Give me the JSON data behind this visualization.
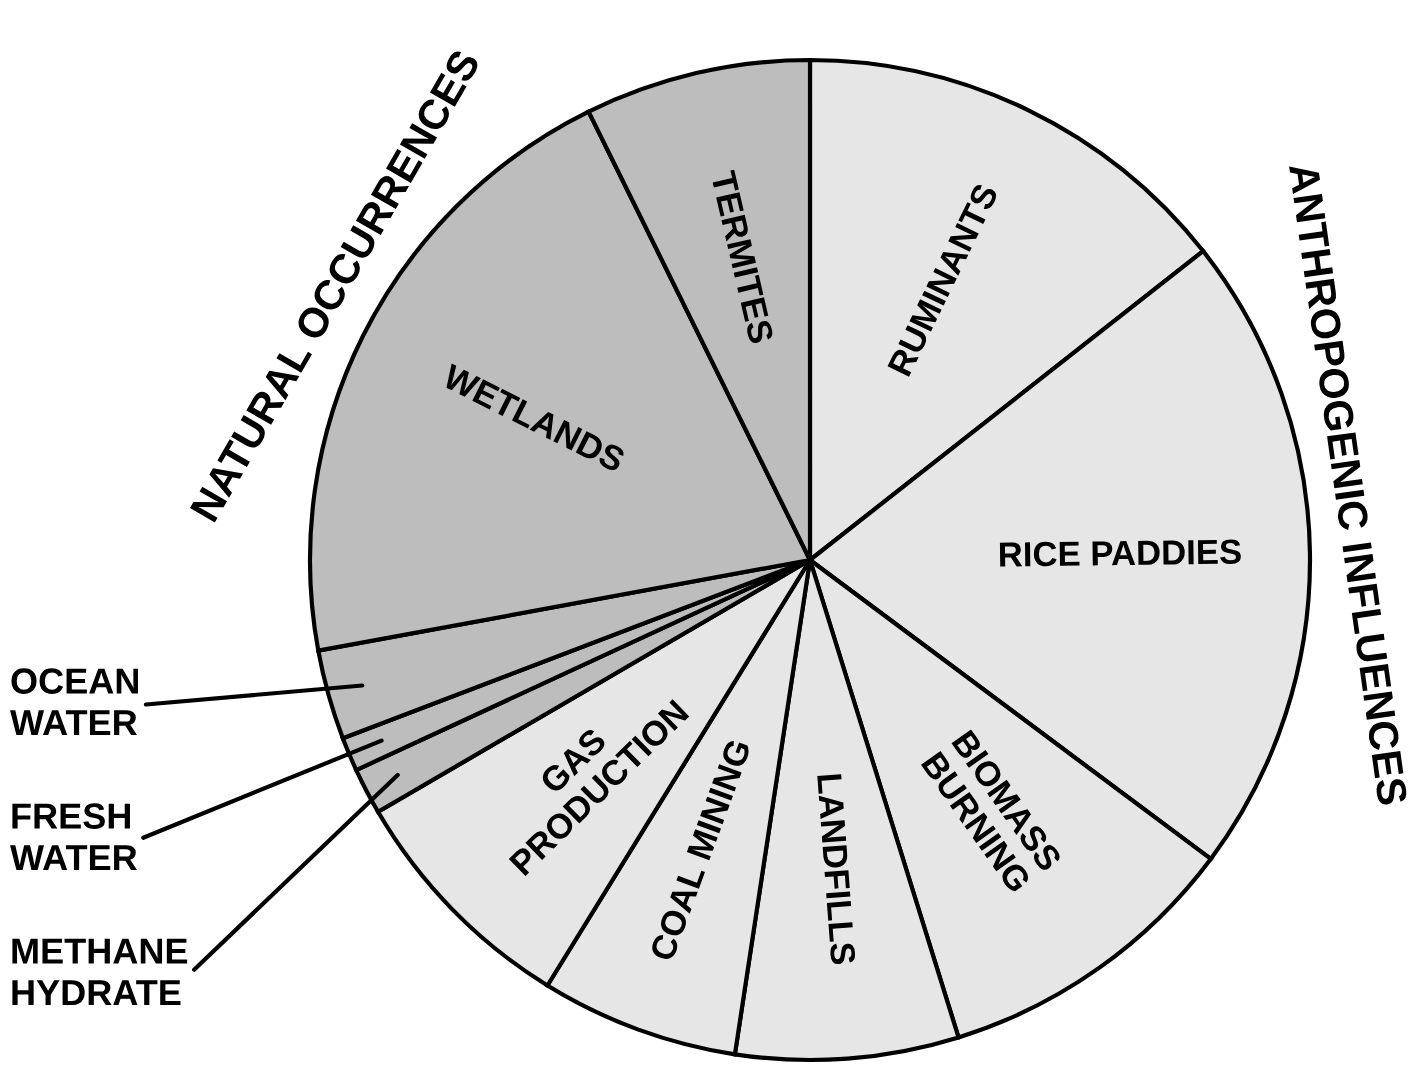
{
  "chart_data": {
    "type": "pie",
    "categories": [
      "RUMINANTS",
      "RICE PADDIES",
      "BIOMASS\nBURNING",
      "LANDFILLS",
      "COAL MINING",
      "GAS\nPRODUCTION",
      "METHANE\nHYDRATE",
      "FRESH\nWATER",
      "OCEAN\nWATER",
      "WETLANDS",
      "TERMITES"
    ],
    "values": [
      14.4,
      20.8,
      10.0,
      7.2,
      6.4,
      7.8,
      1.5,
      1.1,
      2.9,
      20.6,
      7.3
    ],
    "colors": [
      "#e6e6e6",
      "#e6e6e6",
      "#e6e6e6",
      "#e6e6e6",
      "#e6e6e6",
      "#e6e6e6",
      "#bdbdbd",
      "#bdbdbd",
      "#bdbdbd",
      "#bdbdbd",
      "#bdbdbd"
    ],
    "annotations": [
      "NATURAL OCCURRENCES",
      "ANTHROPOGENIC INFLUENCES"
    ]
  }
}
